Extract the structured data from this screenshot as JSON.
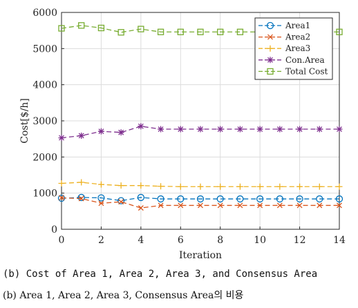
{
  "chart_data": {
    "type": "line",
    "xlabel": "Iteration",
    "ylabel": "Cost[$/h]",
    "xlim": [
      0,
      14
    ],
    "ylim": [
      0,
      6000
    ],
    "xticks": [
      0,
      2,
      4,
      6,
      8,
      10,
      12,
      14
    ],
    "yticks": [
      0,
      1000,
      2000,
      3000,
      4000,
      5000,
      6000
    ],
    "grid": true,
    "legend_position": "top-right",
    "x": [
      0,
      1,
      2,
      3,
      4,
      5,
      6,
      7,
      8,
      9,
      10,
      11,
      12,
      13,
      14
    ],
    "series": [
      {
        "name": "Area1",
        "color": "#0072BD",
        "marker": "circle",
        "values": [
          860,
          880,
          870,
          790,
          880,
          840,
          840,
          840,
          840,
          840,
          840,
          840,
          840,
          840,
          840
        ]
      },
      {
        "name": "Area2",
        "color": "#D95319",
        "marker": "x",
        "values": [
          870,
          850,
          720,
          760,
          590,
          660,
          660,
          660,
          660,
          660,
          660,
          660,
          660,
          660,
          660
        ]
      },
      {
        "name": "Area3",
        "color": "#EDB120",
        "marker": "plus",
        "values": [
          1270,
          1300,
          1240,
          1210,
          1210,
          1190,
          1180,
          1180,
          1180,
          1180,
          1180,
          1180,
          1180,
          1180,
          1180
        ]
      },
      {
        "name": "Con.Area",
        "color": "#7E2F8E",
        "marker": "star",
        "values": [
          2530,
          2590,
          2710,
          2680,
          2850,
          2770,
          2770,
          2770,
          2770,
          2770,
          2770,
          2770,
          2770,
          2770,
          2770
        ]
      },
      {
        "name": "Total Cost",
        "color": "#77AC30",
        "marker": "square",
        "values": [
          5560,
          5640,
          5570,
          5450,
          5540,
          5460,
          5460,
          5460,
          5460,
          5460,
          5460,
          5460,
          5460,
          5460,
          5460
        ]
      }
    ]
  },
  "captions": {
    "en": "(b) Cost of Area 1, Area 2, Area 3, and Consensus Area",
    "ko": "(b) Area 1, Area 2, Area 3, Consensus Area의 비용"
  }
}
